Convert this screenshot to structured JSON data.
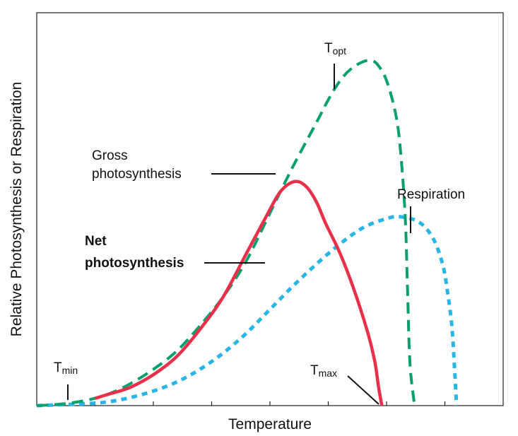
{
  "chart_data": {
    "type": "line",
    "xlabel": "Temperature",
    "ylabel": "Relative Photosynthesis or Respiration",
    "ticks": {
      "x_count": 8,
      "labels_shown": false
    },
    "series": [
      {
        "key": "gross",
        "label_lines": [
          "Gross",
          "photosynthesis"
        ],
        "color": "#0aa06e",
        "style": "dashed",
        "points": [
          [
            0.0,
            0.0
          ],
          [
            0.05,
            0.004
          ],
          [
            0.1,
            0.013
          ],
          [
            0.15,
            0.03
          ],
          [
            0.2,
            0.06
          ],
          [
            0.25,
            0.1
          ],
          [
            0.3,
            0.15
          ],
          [
            0.35,
            0.22
          ],
          [
            0.4,
            0.3
          ],
          [
            0.45,
            0.4
          ],
          [
            0.5,
            0.53
          ],
          [
            0.55,
            0.66
          ],
          [
            0.6,
            0.78
          ],
          [
            0.62,
            0.83
          ],
          [
            0.64,
            0.875
          ],
          [
            0.66,
            0.91
          ],
          [
            0.68,
            0.933
          ],
          [
            0.7,
            0.947
          ],
          [
            0.715,
            0.95
          ],
          [
            0.73,
            0.94
          ],
          [
            0.75,
            0.895
          ],
          [
            0.77,
            0.8
          ],
          [
            0.78,
            0.7
          ],
          [
            0.79,
            0.52
          ],
          [
            0.795,
            0.32
          ],
          [
            0.8,
            0.12
          ],
          [
            0.81,
            0.0
          ]
        ]
      },
      {
        "key": "net",
        "label_lines": [
          "Net",
          "photosynthesis"
        ],
        "label_bold": true,
        "color": "#e8304a",
        "style": "solid",
        "points": [
          [
            0.125,
            0.02
          ],
          [
            0.15,
            0.03
          ],
          [
            0.2,
            0.05
          ],
          [
            0.25,
            0.085
          ],
          [
            0.3,
            0.135
          ],
          [
            0.35,
            0.21
          ],
          [
            0.4,
            0.3
          ],
          [
            0.45,
            0.42
          ],
          [
            0.5,
            0.54
          ],
          [
            0.52,
            0.585
          ],
          [
            0.54,
            0.61
          ],
          [
            0.56,
            0.617
          ],
          [
            0.58,
            0.6
          ],
          [
            0.6,
            0.56
          ],
          [
            0.62,
            0.5
          ],
          [
            0.65,
            0.42
          ],
          [
            0.68,
            0.32
          ],
          [
            0.71,
            0.2
          ],
          [
            0.725,
            0.12
          ],
          [
            0.733,
            0.05
          ],
          [
            0.74,
            0.0
          ]
        ]
      },
      {
        "key": "respiration",
        "label_lines": [
          "Respiration"
        ],
        "color": "#29b6e6",
        "style": "dotted",
        "points": [
          [
            0.0,
            0.0
          ],
          [
            0.1,
            0.005
          ],
          [
            0.15,
            0.01
          ],
          [
            0.2,
            0.022
          ],
          [
            0.25,
            0.04
          ],
          [
            0.3,
            0.065
          ],
          [
            0.35,
            0.1
          ],
          [
            0.4,
            0.145
          ],
          [
            0.45,
            0.2
          ],
          [
            0.5,
            0.265
          ],
          [
            0.55,
            0.33
          ],
          [
            0.6,
            0.39
          ],
          [
            0.65,
            0.445
          ],
          [
            0.7,
            0.49
          ],
          [
            0.75,
            0.515
          ],
          [
            0.78,
            0.52
          ],
          [
            0.82,
            0.505
          ],
          [
            0.85,
            0.46
          ],
          [
            0.87,
            0.39
          ],
          [
            0.88,
            0.32
          ],
          [
            0.89,
            0.22
          ],
          [
            0.895,
            0.12
          ],
          [
            0.9,
            0.0
          ]
        ]
      }
    ],
    "annotations": [
      {
        "key": "topt",
        "base": "T",
        "sub": "opt"
      },
      {
        "key": "tmin",
        "base": "T",
        "sub": "min"
      },
      {
        "key": "tmax",
        "base": "T",
        "sub": "max"
      }
    ]
  }
}
